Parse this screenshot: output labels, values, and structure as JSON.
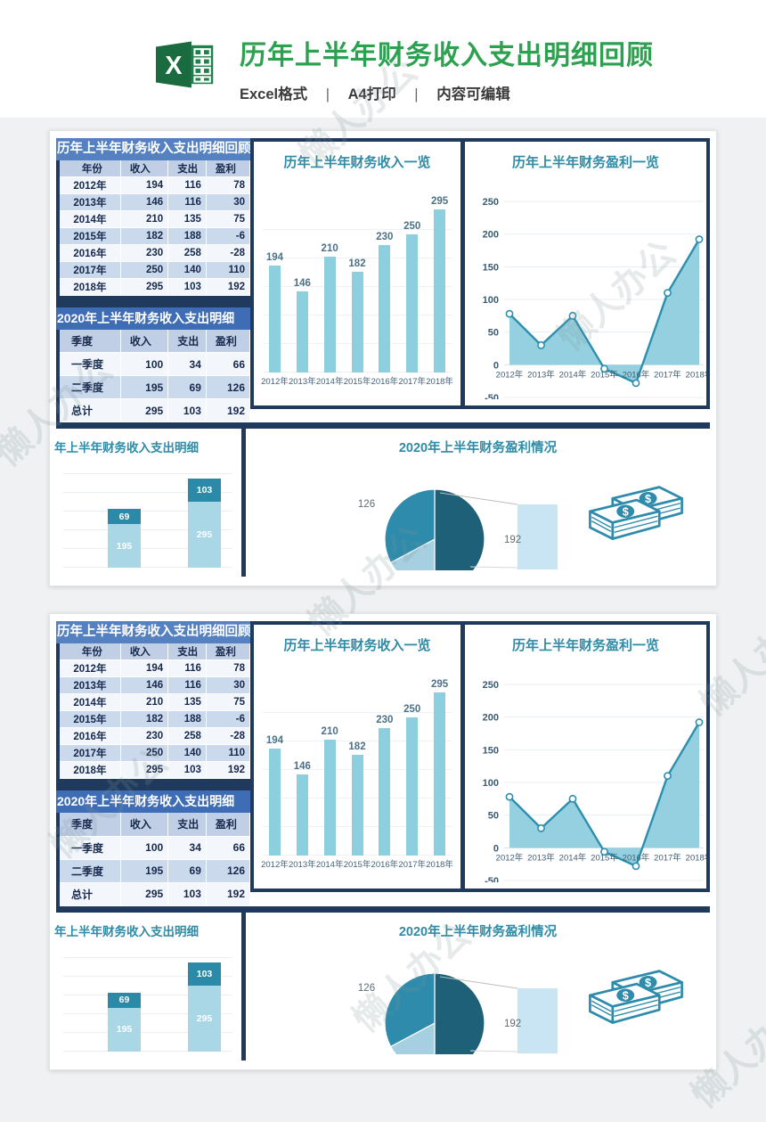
{
  "page": {
    "title": "历年上半年财务收入支出明细回顾",
    "subtitle_parts": [
      "Excel格式",
      "A4打印",
      "内容可编辑"
    ],
    "subtitle_separator": "|",
    "watermark": "懒人办公",
    "accent_green": "#2ca14f",
    "excel_icon_green": "#1f7145"
  },
  "panel": {
    "navy": "#203a5e",
    "chart_title_color": "#2f8ba6",
    "table1": {
      "title": "历年上半年财务收入支出明细回顾",
      "headers": [
        "年份",
        "收入",
        "支出",
        "盈利"
      ],
      "rows": [
        [
          "2012年",
          "194",
          "116",
          "78"
        ],
        [
          "2013年",
          "146",
          "116",
          "30"
        ],
        [
          "2014年",
          "210",
          "135",
          "75"
        ],
        [
          "2015年",
          "182",
          "188",
          "-6"
        ],
        [
          "2016年",
          "230",
          "258",
          "-28"
        ],
        [
          "2017年",
          "250",
          "140",
          "110"
        ],
        [
          "2018年",
          "295",
          "103",
          "192"
        ]
      ]
    },
    "table2": {
      "title": "2020年上半年财务收入支出明细",
      "headers": [
        "季度",
        "收入",
        "支出",
        "盈利"
      ],
      "rows": [
        [
          "一季度",
          "100",
          "34",
          "66"
        ],
        [
          "二季度",
          "195",
          "69",
          "126"
        ],
        [
          "总计",
          "295",
          "103",
          "192"
        ]
      ]
    }
  },
  "chart_data": [
    {
      "id": "income_bar",
      "type": "bar",
      "title": "历年上半年财务收入一览",
      "categories": [
        "2012年",
        "2013年",
        "2014年",
        "2015年",
        "2016年",
        "2017年",
        "2018年"
      ],
      "values": [
        194,
        146,
        210,
        182,
        230,
        250,
        295
      ],
      "bar_color": "#8ccfdf",
      "data_labels": true,
      "ylim": [
        0,
        320
      ],
      "grid": true,
      "legend": "none"
    },
    {
      "id": "profit_area",
      "type": "area",
      "title": "历年上半年财务盈利一览",
      "categories": [
        "2012年",
        "2013年",
        "2014年",
        "2015年",
        "2016年",
        "2017年",
        "2018年"
      ],
      "values": [
        78,
        30,
        75,
        -6,
        -28,
        110,
        192
      ],
      "ylim": [
        -50,
        250
      ],
      "yticks": [
        250,
        200,
        150,
        100,
        50,
        0,
        -50
      ],
      "line_color": "#2c8fb0",
      "fill_color": "#8ecddd",
      "marker": "white-circle",
      "grid": true,
      "legend": "none"
    },
    {
      "id": "detail_stack",
      "type": "stacked_bar",
      "title": "年上半年财务收入支出明细",
      "bars": [
        {
          "segments": [
            {
              "value": 195,
              "color": "#a9d7e6"
            },
            {
              "value": 69,
              "color": "#2a8aa8"
            }
          ]
        },
        {
          "segments": [
            {
              "value": 295,
              "color": "#a9d7e6"
            },
            {
              "value": 103,
              "color": "#2a8aa8"
            }
          ]
        }
      ],
      "data_labels": true,
      "grid": true,
      "legend": "none"
    },
    {
      "id": "profit_pie",
      "type": "pie",
      "variant": "bar-of-pie",
      "title": "2020年上半年财务盈利情况",
      "slices": [
        {
          "value": 192,
          "label": "192",
          "color": "#1d6078"
        },
        {
          "value": 66,
          "label": "",
          "color": "#a6d0e2"
        },
        {
          "value": 126,
          "label": "126",
          "color": "#2e8bab"
        }
      ],
      "aux_bar_color": "#c9e4f3",
      "legend": "none"
    }
  ],
  "icons": {
    "money_stack_color": "#2e8bab"
  }
}
